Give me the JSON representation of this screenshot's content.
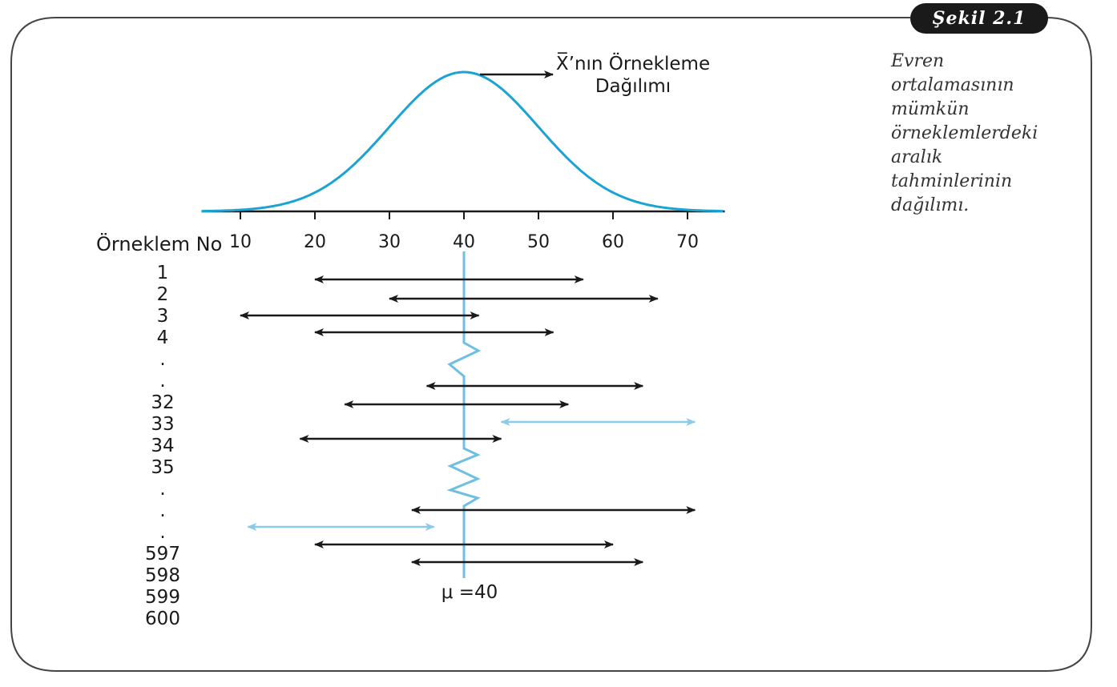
{
  "figure_label": "Şekil 2.1",
  "caption_lines": [
    "Evren",
    "ortalamasının",
    "mümkün",
    "örneklemlerdeki",
    "aralık",
    "tahminlerinin",
    "dağılımı."
  ],
  "colors": {
    "curve": "#1ba3d1",
    "mu_line": "#6fbfe3",
    "interval_hit": "#1a1a1a",
    "interval_miss": "#8ccbe8",
    "frame": "#444444"
  },
  "chart_data": {
    "type": "diagram",
    "curve_label_lines": [
      "X̅’nın Örnekleme",
      "Dağılımı"
    ],
    "distribution": {
      "mean": 40,
      "sd": 10
    },
    "axis": {
      "min": 5,
      "max": 75,
      "ticks": [
        10,
        20,
        30,
        40,
        50,
        60,
        70
      ]
    },
    "row_header": "Örneklem No",
    "row_labels": [
      "1",
      "2",
      "3",
      "4",
      ".",
      ".",
      "32",
      "33",
      "34",
      "35",
      ".",
      ".",
      ".",
      "597",
      "598",
      "599",
      "600"
    ],
    "mu_label": "μ =40",
    "intervals": [
      {
        "low": 20,
        "high": 56,
        "contains_mu": true
      },
      {
        "low": 30,
        "high": 66,
        "contains_mu": true
      },
      {
        "low": 10,
        "high": 42,
        "contains_mu": true
      },
      {
        "low": 20,
        "high": 52,
        "contains_mu": true
      },
      {
        "low": 35,
        "high": 64,
        "contains_mu": true
      },
      {
        "low": 24,
        "high": 54,
        "contains_mu": true
      },
      {
        "low": 45,
        "high": 71,
        "contains_mu": false
      },
      {
        "low": 18,
        "high": 45,
        "contains_mu": true
      },
      {
        "low": 33,
        "high": 71,
        "contains_mu": true
      },
      {
        "low": 11,
        "high": 36,
        "contains_mu": false
      },
      {
        "low": 20,
        "high": 60,
        "contains_mu": true
      },
      {
        "low": 33,
        "high": 64,
        "contains_mu": true
      }
    ]
  }
}
